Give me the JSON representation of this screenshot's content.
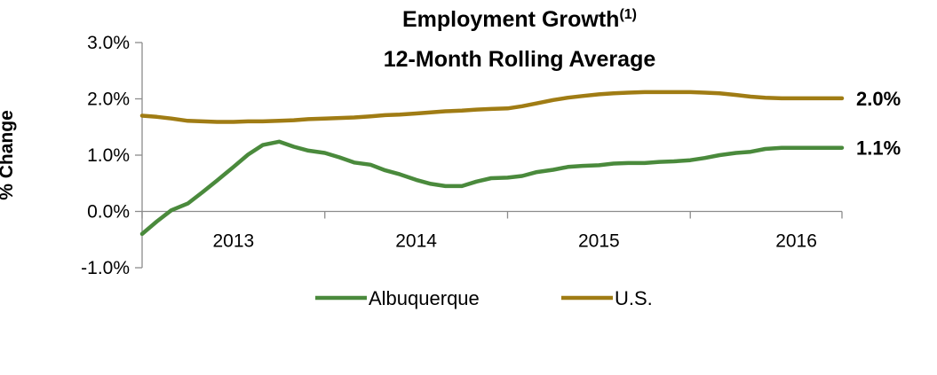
{
  "chart_data": {
    "type": "line",
    "title": "Employment Growth",
    "title_superscript": "(1)",
    "subtitle": "12-Month Rolling Average",
    "ylabel": "% Change",
    "xlabel": "",
    "ylim": [
      -1.0,
      3.0
    ],
    "yticks": [
      -1.0,
      0.0,
      1.0,
      2.0,
      3.0
    ],
    "ytick_labels": [
      "-1.0%",
      "0.0%",
      "1.0%",
      "2.0%",
      "3.0%"
    ],
    "xlim": [
      2012.42,
      2016.25
    ],
    "xticks": [
      2012.42,
      2013.42,
      2014.42,
      2015.42,
      2016.25
    ],
    "xtick_labels": [
      {
        "label": "2013",
        "x": 2012.92
      },
      {
        "label": "2014",
        "x": 2013.92
      },
      {
        "label": "2015",
        "x": 2014.92
      },
      {
        "label": "2016",
        "x": 2016.0
      }
    ],
    "grid": false,
    "legend_position": "bottom",
    "series": [
      {
        "name": "Albuquerque",
        "color": "#4a8a3c",
        "end_label": "1.1%",
        "x": [
          2012.42,
          2012.5,
          2012.58,
          2012.67,
          2012.75,
          2012.83,
          2012.92,
          2013.0,
          2013.08,
          2013.17,
          2013.25,
          2013.33,
          2013.42,
          2013.5,
          2013.58,
          2013.67,
          2013.75,
          2013.83,
          2013.92,
          2014.0,
          2014.08,
          2014.17,
          2014.25,
          2014.33,
          2014.42,
          2014.5,
          2014.58,
          2014.67,
          2014.75,
          2014.83,
          2014.92,
          2015.0,
          2015.08,
          2015.17,
          2015.25,
          2015.33,
          2015.42,
          2015.5,
          2015.58,
          2015.67,
          2015.75,
          2015.83,
          2015.92,
          2016.0,
          2016.08,
          2016.17,
          2016.25
        ],
        "values": [
          -0.4,
          -0.18,
          0.02,
          0.14,
          0.34,
          0.55,
          0.79,
          1.01,
          1.18,
          1.24,
          1.15,
          1.08,
          1.04,
          0.96,
          0.87,
          0.83,
          0.73,
          0.66,
          0.56,
          0.49,
          0.45,
          0.45,
          0.53,
          0.59,
          0.6,
          0.63,
          0.7,
          0.74,
          0.79,
          0.81,
          0.82,
          0.85,
          0.86,
          0.86,
          0.88,
          0.89,
          0.91,
          0.95,
          1.0,
          1.04,
          1.06,
          1.11,
          1.13,
          1.13,
          1.13,
          1.13,
          1.13
        ]
      },
      {
        "name": "U.S.",
        "color": "#a07c14",
        "end_label": "2.0%",
        "x": [
          2012.42,
          2012.5,
          2012.58,
          2012.67,
          2012.75,
          2012.83,
          2012.92,
          2013.0,
          2013.08,
          2013.17,
          2013.25,
          2013.33,
          2013.42,
          2013.5,
          2013.58,
          2013.67,
          2013.75,
          2013.83,
          2013.92,
          2014.0,
          2014.08,
          2014.17,
          2014.25,
          2014.33,
          2014.42,
          2014.5,
          2014.58,
          2014.67,
          2014.75,
          2014.83,
          2014.92,
          2015.0,
          2015.08,
          2015.17,
          2015.25,
          2015.33,
          2015.42,
          2015.5,
          2015.58,
          2015.67,
          2015.75,
          2015.83,
          2015.92,
          2016.0,
          2016.08,
          2016.17,
          2016.25
        ],
        "values": [
          1.7,
          1.68,
          1.65,
          1.61,
          1.6,
          1.59,
          1.59,
          1.6,
          1.6,
          1.61,
          1.62,
          1.64,
          1.65,
          1.66,
          1.67,
          1.69,
          1.71,
          1.72,
          1.74,
          1.76,
          1.78,
          1.79,
          1.81,
          1.82,
          1.83,
          1.87,
          1.92,
          1.98,
          2.02,
          2.05,
          2.08,
          2.1,
          2.11,
          2.12,
          2.12,
          2.12,
          2.12,
          2.11,
          2.1,
          2.07,
          2.04,
          2.02,
          2.01,
          2.01,
          2.01,
          2.01,
          2.01
        ]
      }
    ]
  }
}
